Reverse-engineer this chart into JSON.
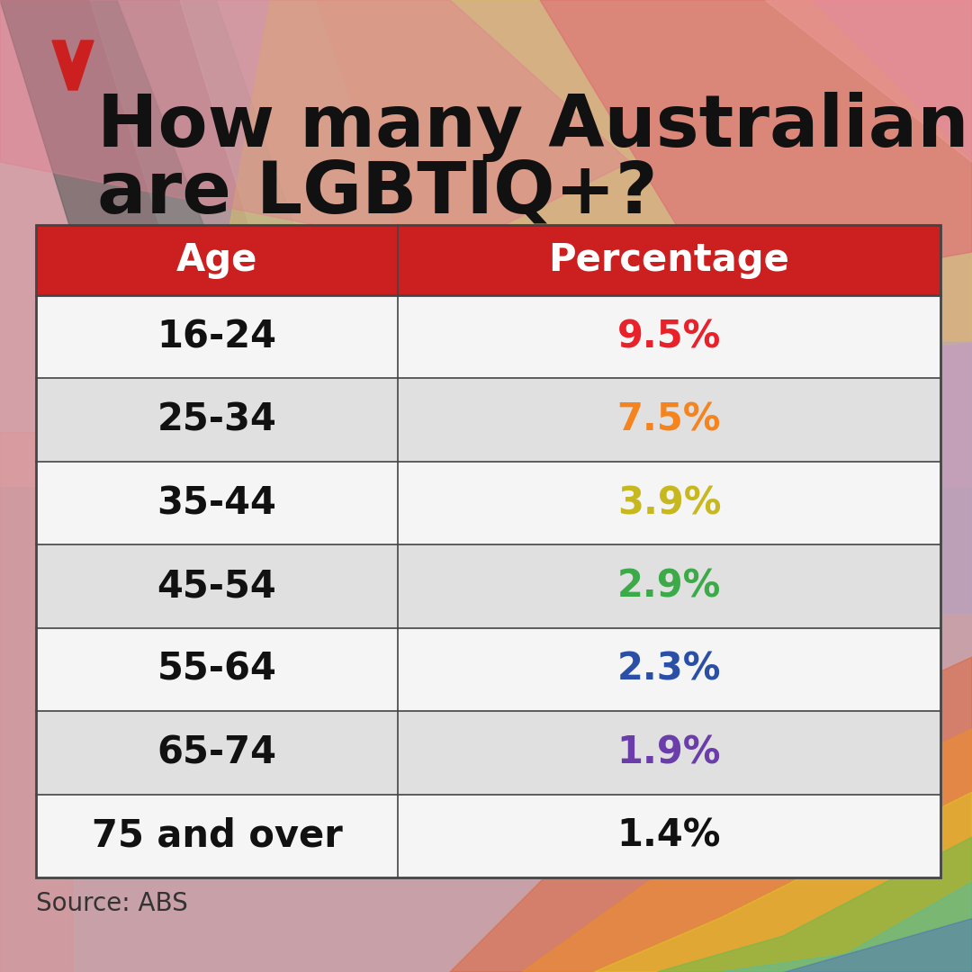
{
  "title_line1": "How many Australians",
  "title_line2": "are LGBTIQ+?",
  "source": "Source: ABS",
  "header_bg": "#CC2020",
  "header_text_color": "#FFFFFF",
  "col_headers": [
    "Age",
    "Percentage"
  ],
  "age_groups": [
    "16-24",
    "25-34",
    "35-44",
    "45-54",
    "55-64",
    "65-74",
    "75 and over"
  ],
  "percentages": [
    "9.5%",
    "7.5%",
    "3.9%",
    "2.9%",
    "2.3%",
    "1.9%",
    "1.4%"
  ],
  "pct_colors": [
    "#E8212B",
    "#F5841F",
    "#C8B820",
    "#3DAA4A",
    "#2B4FA6",
    "#6B3DAA",
    "#111111"
  ],
  "row_bg_odd": "#F5F5F5",
  "row_bg_even": "#E0E0E0",
  "border_color": "#444444",
  "title_color": "#111111",
  "age_text_color": "#111111",
  "title_fontsize": 58,
  "header_fontsize": 30,
  "cell_fontsize": 30,
  "source_fontsize": 20,
  "bg_base": "#C8A0A8",
  "abc_red": "#CC2020"
}
